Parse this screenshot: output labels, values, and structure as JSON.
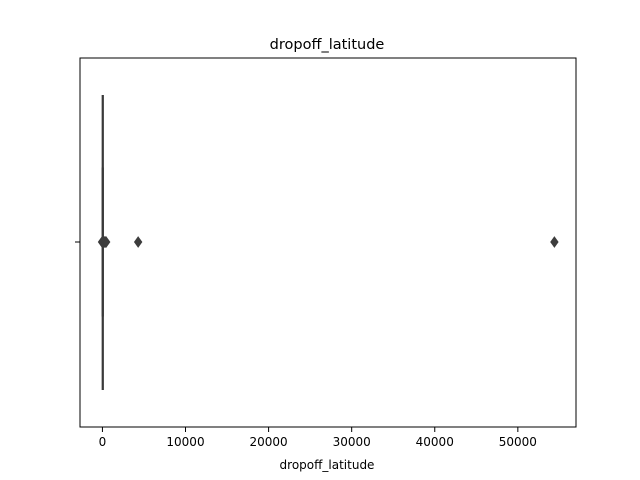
{
  "chart_data": {
    "type": "boxplot",
    "orientation": "horizontal",
    "title": "dropoff_latitude",
    "xlabel": "dropoff_latitude",
    "ylabel": "",
    "xlim": [
      -2700,
      57000
    ],
    "xticks": [
      0,
      10000,
      20000,
      30000,
      40000,
      50000
    ],
    "xtick_labels": [
      "0",
      "10000",
      "20000",
      "30000",
      "40000",
      "50000"
    ],
    "box": {
      "q1": 40.73,
      "median": 40.75,
      "q3": 40.77
    },
    "whisker_lo": 40.6,
    "whisker_hi": 40.9,
    "outliers": [
      -50,
      0,
      20,
      60,
      120,
      200,
      300,
      380,
      450,
      4300,
      54400
    ],
    "grid": false,
    "colors": {
      "box": "#3a3a3a",
      "outlier": "#3d3d3d",
      "background": "#ffffff"
    }
  }
}
